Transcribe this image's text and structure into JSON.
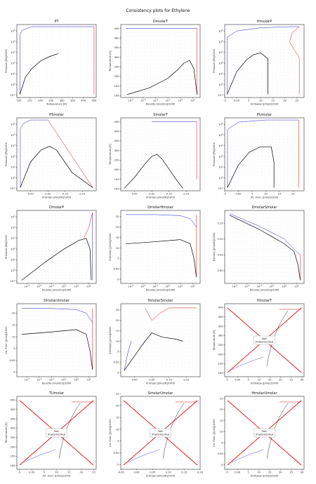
{
  "figure": {
    "title": "Consistency plots for Ethylene"
  },
  "colors": {
    "dots": "#222222",
    "two_phase": "#000000",
    "left_boundary": "#1f1fd0",
    "right_boundary": "#e01010",
    "not_impl_lines": "#e01010",
    "axes": "#000000"
  },
  "chart_data": [
    {
      "id": "PT",
      "title": "PT",
      "type": "scatter",
      "xlabel": "Temperature [K]",
      "ylabel": "Pressure [Pa]/1000",
      "xlim": [
        90,
        460
      ],
      "ylim": [
        -1.2,
        5.6
      ],
      "ylog": true,
      "xlog": false,
      "xticks": [
        100,
        150,
        200,
        250,
        300,
        350,
        400,
        450
      ],
      "yticks": [
        -1,
        0,
        1,
        2,
        3,
        4,
        5
      ],
      "grid_x": [
        100,
        450,
        12
      ],
      "grid_y": [
        -1,
        5.4,
        22
      ],
      "sat": [
        [
          104,
          -0.9
        ],
        [
          130,
          0.7
        ],
        [
          160,
          1.5
        ],
        [
          200,
          2.2
        ],
        [
          240,
          2.6
        ],
        [
          283,
          2.9
        ]
      ],
      "left": [
        [
          104,
          -0.9
        ],
        [
          104,
          4.6
        ],
        [
          112,
          5.0
        ],
        [
          130,
          5.2
        ],
        [
          160,
          5.4
        ],
        [
          450,
          5.4
        ]
      ],
      "right": [
        [
          450,
          5.4
        ],
        [
          450,
          -0.9
        ]
      ],
      "implemented": true
    },
    {
      "id": "DmolarT",
      "title": "DmolarT",
      "type": "scatter",
      "xlabel": "Density [mol/m3]/1000",
      "ylabel": "Temperature [K]",
      "xlim": [
        -4.8,
        1.6
      ],
      "ylim": [
        90,
        470
      ],
      "xlog": true,
      "ylog": false,
      "xticks": [
        -4,
        -3,
        -2,
        -1,
        0,
        1
      ],
      "yticks": [
        100,
        150,
        200,
        250,
        300,
        350,
        400,
        450
      ],
      "grid_x": [
        -4.4,
        1.3,
        24
      ],
      "grid_y": [
        100,
        450,
        18
      ],
      "sat": [
        [
          -4.3,
          105
        ],
        [
          -2.5,
          140
        ],
        [
          -1.0,
          190
        ],
        [
          -0.2,
          235
        ],
        [
          0.3,
          270
        ],
        [
          0.75,
          283
        ],
        [
          1.1,
          240
        ],
        [
          1.35,
          105
        ]
      ],
      "left": [
        [
          -4.4,
          450
        ],
        [
          1.35,
          450
        ]
      ],
      "right": [
        [
          1.35,
          450
        ],
        [
          1.35,
          105
        ]
      ],
      "implemented": true
    },
    {
      "id": "HmolarP",
      "title": "HmolarP",
      "type": "scatter",
      "xlabel": "Enthalpy [J/mol]/1000",
      "ylabel": "Pressure [Pa]/1000",
      "xlim": [
        -5,
        28
      ],
      "ylim": [
        -1.2,
        5.6
      ],
      "xlog": false,
      "ylog": true,
      "xticks": [
        -5,
        0,
        5,
        10,
        15,
        20,
        25
      ],
      "yticks": [
        -1,
        0,
        1,
        2,
        3,
        4,
        5
      ],
      "grid_x": [
        -4,
        26,
        20
      ],
      "grid_y": [
        -1,
        5.4,
        22
      ],
      "sat": [
        [
          -4,
          -0.9
        ],
        [
          0,
          1.2
        ],
        [
          4,
          2.3
        ],
        [
          7,
          2.8
        ],
        [
          10,
          2.95
        ],
        [
          13,
          2.4
        ],
        [
          13,
          1.0
        ],
        [
          13,
          -0.9
        ]
      ],
      "left": [
        [
          -4,
          -0.9
        ],
        [
          -4,
          4.4
        ],
        [
          0,
          5.0
        ],
        [
          10,
          5.3
        ],
        [
          22,
          5.4
        ],
        [
          26,
          5.4
        ]
      ],
      "right": [
        [
          26,
          5.4
        ],
        [
          23,
          4.8
        ],
        [
          22,
          4.0
        ],
        [
          24,
          3.2
        ],
        [
          26,
          2.5
        ],
        [
          26,
          -0.9
        ]
      ],
      "implemented": true
    },
    {
      "id": "PSmolar",
      "title": "PSmolar",
      "type": "scatter",
      "xlabel": "Entropy [J/mol/K]/1000",
      "ylabel": "Pressure [Pa]/1000",
      "xlim": [
        -0.04,
        0.19
      ],
      "ylim": [
        -1.2,
        5.6
      ],
      "xlog": false,
      "ylog": true,
      "xticks": [
        0.0,
        0.05,
        0.1,
        0.15
      ],
      "yticks": [
        -1,
        0,
        1,
        2,
        3,
        4,
        5
      ],
      "grid_x": [
        -0.03,
        0.18,
        20
      ],
      "grid_y": [
        -1,
        5.4,
        22
      ],
      "sat": [
        [
          -0.03,
          -0.9
        ],
        [
          0.0,
          1.5
        ],
        [
          0.03,
          2.6
        ],
        [
          0.055,
          2.95
        ],
        [
          0.075,
          2.6
        ],
        [
          0.12,
          0.5
        ],
        [
          0.18,
          -0.9
        ]
      ],
      "left": [
        [
          -0.03,
          -0.9
        ],
        [
          -0.03,
          4.6
        ],
        [
          -0.02,
          5.1
        ],
        [
          0.0,
          5.4
        ],
        [
          0.05,
          5.4
        ]
      ],
      "right": [
        [
          0.05,
          5.4
        ],
        [
          0.18,
          -0.9
        ]
      ],
      "implemented": true
    },
    {
      "id": "SmolarT",
      "title": "SmolarT",
      "type": "scatter",
      "xlabel": "Entropy [J/mol/K]/1000",
      "ylabel": "Temperature [K]",
      "xlim": [
        -0.04,
        0.19
      ],
      "ylim": [
        90,
        470
      ],
      "xlog": false,
      "ylog": false,
      "xticks": [
        0.0,
        0.05,
        0.1,
        0.15
      ],
      "yticks": [
        100,
        150,
        200,
        250,
        300,
        350,
        400,
        450
      ],
      "grid_x": [
        -0.03,
        0.18,
        22
      ],
      "grid_y": [
        100,
        450,
        18
      ],
      "sat": [
        [
          -0.03,
          103
        ],
        [
          0.0,
          160
        ],
        [
          0.03,
          230
        ],
        [
          0.05,
          270
        ],
        [
          0.065,
          280
        ],
        [
          0.08,
          255
        ],
        [
          0.12,
          150
        ],
        [
          0.14,
          103
        ]
      ],
      "left": [
        [
          0.05,
          450
        ],
        [
          0.18,
          450
        ]
      ],
      "right": [
        [
          0.18,
          450
        ],
        [
          0.18,
          150
        ]
      ],
      "implemented": true
    },
    {
      "id": "PUmolar",
      "title": "PUmolar",
      "type": "scatter",
      "xlabel": "Int. Ener. [J/mol]/1000",
      "ylabel": "Pressure [Pa]/1000",
      "xlim": [
        -5,
        24
      ],
      "ylim": [
        -1.2,
        5.6
      ],
      "xlog": false,
      "ylog": true,
      "xticks": [
        -5,
        0,
        5,
        10,
        15,
        20
      ],
      "yticks": [
        -1,
        0,
        1,
        2,
        3,
        4,
        5
      ],
      "grid_x": [
        -4,
        22,
        20
      ],
      "grid_y": [
        -1,
        5.4,
        22
      ],
      "sat": [
        [
          -4,
          -0.9
        ],
        [
          0,
          1.2
        ],
        [
          4,
          2.4
        ],
        [
          8,
          2.9
        ],
        [
          12,
          2.9
        ],
        [
          13,
          1.5
        ],
        [
          13,
          -0.9
        ]
      ],
      "left": [
        [
          -4,
          -0.9
        ],
        [
          -4,
          4.5
        ],
        [
          0,
          5.2
        ],
        [
          10,
          5.4
        ],
        [
          22,
          5.4
        ]
      ],
      "right": [
        [
          22,
          5.4
        ],
        [
          22,
          -0.9
        ]
      ],
      "implemented": true
    },
    {
      "id": "DmolarP",
      "title": "DmolarP",
      "type": "scatter",
      "xlabel": "Density [mol/m3]/1000",
      "ylabel": "Pressure [Pa]/1000",
      "xlim": [
        -4.8,
        1.6
      ],
      "ylim": [
        -1.2,
        5.6
      ],
      "xlog": true,
      "ylog": true,
      "xticks": [
        -4,
        -3,
        -2,
        -1,
        0,
        1
      ],
      "yticks": [
        -1,
        0,
        1,
        2,
        3,
        4,
        5
      ],
      "grid_x": [
        -4.4,
        1.3,
        22
      ],
      "grid_y": [
        -1,
        5.4,
        24
      ],
      "sat": [
        [
          -4.4,
          -0.9
        ],
        [
          -2.5,
          0.8
        ],
        [
          -1.0,
          2.0
        ],
        [
          0.2,
          2.8
        ],
        [
          0.8,
          3.0
        ],
        [
          1.1,
          2.0
        ],
        [
          1.2,
          -0.9
        ]
      ],
      "left": [
        [
          1.3,
          5.4
        ],
        [
          1.3,
          -0.9
        ]
      ],
      "right": [
        [
          0.6,
          3.0
        ],
        [
          1.0,
          4.0
        ],
        [
          1.3,
          5.4
        ]
      ],
      "implemented": true
    },
    {
      "id": "DmolarHmolar",
      "title": "DmolarHmolar",
      "type": "scatter",
      "xlabel": "Density [mol/m3]/1000",
      "ylabel": "Enthalpy [J/mol]/1000",
      "xlim": [
        -4.8,
        1.6
      ],
      "ylim": [
        -7,
        28
      ],
      "xlog": true,
      "ylog": false,
      "xticks": [
        -4,
        -3,
        -2,
        -1,
        0,
        1
      ],
      "yticks": [
        -5,
        0,
        5,
        10,
        15,
        20,
        25
      ],
      "grid_x": [
        -4.4,
        1.3,
        22
      ],
      "grid_y": [
        -4,
        26,
        18
      ],
      "sat": [
        [
          -4.4,
          12
        ],
        [
          -2,
          13
        ],
        [
          0,
          14
        ],
        [
          0.8,
          12
        ],
        [
          1.1,
          5
        ],
        [
          1.3,
          -4
        ]
      ],
      "left": [
        [
          -4.4,
          26
        ],
        [
          -2,
          26
        ],
        [
          0,
          25.5
        ],
        [
          0.8,
          24
        ],
        [
          1.3,
          20
        ]
      ],
      "right": [
        [
          1.3,
          26
        ],
        [
          1.3,
          -4
        ]
      ],
      "implemented": true
    },
    {
      "id": "DmolarSmolar",
      "title": "DmolarSmolar",
      "type": "scatter",
      "xlabel": "Density [mol/m3]/1000",
      "ylabel": "Entropy [J/mol/K]/1000",
      "xlim": [
        -4.8,
        1.6
      ],
      "ylim": [
        -0.04,
        0.19
      ],
      "xlog": true,
      "ylog": false,
      "xticks": [
        -4,
        -3,
        -2,
        -1,
        0,
        1
      ],
      "yticks": [
        0.0,
        0.05,
        0.1,
        0.15
      ],
      "grid_x": [
        -4.4,
        1.3,
        22
      ],
      "grid_y": [
        -0.03,
        0.18,
        18
      ],
      "sat": [
        [
          -4.4,
          0.175
        ],
        [
          -2,
          0.13
        ],
        [
          0,
          0.085
        ],
        [
          0.8,
          0.06
        ],
        [
          1.1,
          0.02
        ],
        [
          1.3,
          -0.03
        ]
      ],
      "left": [
        [
          -4.4,
          0.18
        ],
        [
          -2,
          0.14
        ],
        [
          0,
          0.1
        ],
        [
          1.0,
          0.06
        ],
        [
          1.3,
          0.05
        ]
      ],
      "right": [
        [
          1.3,
          0.05
        ],
        [
          1.3,
          -0.03
        ]
      ],
      "implemented": true
    },
    {
      "id": "DmolarUmolar",
      "title": "DmolarUmolar",
      "type": "scatter",
      "xlabel": "Density [mol/m3]/1000",
      "ylabel": "Int. Ener. [J/mol]/1000",
      "xlim": [
        -4.8,
        1.6
      ],
      "ylim": [
        -7,
        24
      ],
      "xlog": true,
      "ylog": false,
      "xticks": [
        -4,
        -3,
        -2,
        -1,
        0,
        1
      ],
      "yticks": [
        -5,
        0,
        5,
        10,
        15,
        20
      ],
      "grid_x": [
        -4.4,
        1.3,
        22
      ],
      "grid_y": [
        -4,
        22,
        18
      ],
      "sat": [
        [
          -4.4,
          11
        ],
        [
          -2,
          12
        ],
        [
          0,
          13
        ],
        [
          0.8,
          11
        ],
        [
          1.1,
          4
        ],
        [
          1.3,
          -4
        ]
      ],
      "left": [
        [
          -4.4,
          22
        ],
        [
          -2,
          22
        ],
        [
          0,
          21.5
        ],
        [
          0.8,
          20
        ],
        [
          1.3,
          16
        ]
      ],
      "right": [
        [
          1.3,
          22
        ],
        [
          1.3,
          -4
        ]
      ],
      "implemented": true
    },
    {
      "id": "HmolarSmolar",
      "title": "HmolarSmolar",
      "type": "scatter",
      "xlabel": "Entropy [J/mol/K]/1000",
      "ylabel": "Enthalpy [J/mol]/1000",
      "xlim": [
        -0.04,
        0.19
      ],
      "ylim": [
        -7,
        28
      ],
      "xlog": false,
      "ylog": false,
      "xticks": [
        0.0,
        0.05,
        0.1,
        0.15
      ],
      "yticks": [
        -5,
        0,
        5,
        10,
        15,
        20,
        25
      ],
      "grid_x": [
        -0.03,
        0.18,
        20
      ],
      "grid_y": [
        -4,
        26,
        18
      ],
      "sat": [
        [
          -0.03,
          -4
        ],
        [
          0.0,
          3
        ],
        [
          0.03,
          10
        ],
        [
          0.05,
          14
        ],
        [
          0.08,
          12
        ],
        [
          0.12,
          11
        ],
        [
          0.14,
          10
        ]
      ],
      "left": [
        [
          -0.03,
          -4
        ],
        [
          -0.02,
          4
        ],
        [
          -0.01,
          10
        ]
      ],
      "right": [
        [
          0.03,
          26
        ],
        [
          0.05,
          20
        ],
        [
          0.07,
          23
        ],
        [
          0.1,
          26
        ],
        [
          0.18,
          26
        ]
      ],
      "implemented": true
    },
    {
      "id": "HmolarT",
      "title": "HmolarT",
      "type": "line",
      "xlabel": "Enthalpy [J/mol]/1000",
      "ylabel": "Temperature [K]",
      "xlim": [
        -6,
        31
      ],
      "ylim": [
        80,
        470
      ],
      "xlog": false,
      "ylog": false,
      "xticks": [
        -5,
        0,
        5,
        10,
        15,
        20,
        25,
        30
      ],
      "yticks": [
        100,
        150,
        200,
        250,
        300,
        350,
        400,
        450
      ],
      "implemented": false,
      "note": [
        "Not",
        "Implemented"
      ]
    },
    {
      "id": "TUmolar",
      "title": "TUmolar",
      "type": "line",
      "xlabel": "Int. Ener. [J/mol]/1000",
      "ylabel": "Temperature [K]",
      "xlim": [
        -6,
        26
      ],
      "ylim": [
        80,
        470
      ],
      "xlog": false,
      "ylog": false,
      "xticks": [
        -5,
        0,
        5,
        10,
        15,
        20,
        25
      ],
      "yticks": [
        100,
        150,
        200,
        250,
        300,
        350,
        400,
        450
      ],
      "implemented": false,
      "note": [
        "Not",
        "Implemented"
      ]
    },
    {
      "id": "SmolarUmolar",
      "title": "SmolarUmolar",
      "type": "line",
      "xlabel": "Entropy [J/mol/K]/1000",
      "ylabel": "Int. Ener. [J/mol]/1000",
      "xlim": [
        -0.05,
        0.2
      ],
      "ylim": [
        -7,
        24
      ],
      "xlog": false,
      "ylog": false,
      "xticks": [
        -0.05,
        0.0,
        0.05,
        0.1,
        0.15,
        0.2
      ],
      "yticks": [
        -5,
        0,
        5,
        10,
        15,
        20,
        25
      ],
      "implemented": false,
      "note": [
        "Not",
        "Implemented"
      ]
    },
    {
      "id": "HmolarUmolar",
      "title": "HmolarUmolar",
      "type": "line",
      "xlabel": "Enthalpy [J/mol]/1000",
      "ylabel": "Int. Ener. [J/mol]/1000",
      "xlim": [
        -6,
        31
      ],
      "ylim": [
        -7,
        26
      ],
      "xlog": false,
      "ylog": false,
      "xticks": [
        -5,
        0,
        5,
        10,
        15,
        20,
        25,
        30
      ],
      "yticks": [
        -5,
        0,
        5,
        10,
        15,
        20,
        25
      ],
      "implemented": false,
      "note": [
        "Not",
        "Implemented"
      ]
    }
  ]
}
